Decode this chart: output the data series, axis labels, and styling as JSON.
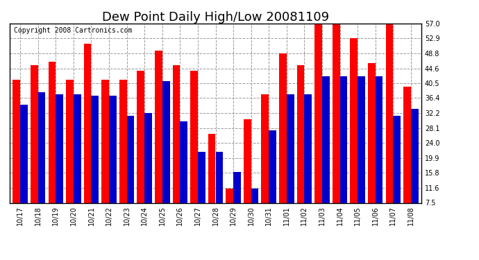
{
  "title": "Dew Point Daily High/Low 20081109",
  "copyright": "Copyright 2008 Cartronics.com",
  "categories": [
    "10/17",
    "10/18",
    "10/19",
    "10/20",
    "10/21",
    "10/22",
    "10/23",
    "10/24",
    "10/25",
    "10/26",
    "10/27",
    "10/28",
    "10/29",
    "10/30",
    "10/31",
    "11/01",
    "11/02",
    "11/03",
    "11/04",
    "11/05",
    "11/06",
    "11/07",
    "11/08"
  ],
  "highs": [
    41.5,
    45.5,
    46.5,
    41.5,
    51.5,
    41.5,
    41.5,
    44.0,
    49.5,
    45.5,
    44.0,
    26.5,
    11.5,
    30.5,
    37.5,
    48.8,
    45.5,
    57.0,
    57.0,
    52.9,
    46.0,
    57.0,
    39.5
  ],
  "lows": [
    34.5,
    38.0,
    37.5,
    37.5,
    37.0,
    37.0,
    31.5,
    32.2,
    41.0,
    30.0,
    21.5,
    21.5,
    16.0,
    11.5,
    27.5,
    37.5,
    37.5,
    42.5,
    42.5,
    42.5,
    42.5,
    31.5,
    33.5
  ],
  "high_color": "#ff0000",
  "low_color": "#0000cc",
  "bg_color": "#ffffff",
  "plot_bg_color": "#ffffff",
  "grid_color": "#999999",
  "yticks": [
    7.5,
    11.6,
    15.8,
    19.9,
    24.0,
    28.1,
    32.2,
    36.4,
    40.5,
    44.6,
    48.8,
    52.9,
    57.0
  ],
  "ymin": 7.5,
  "ymax": 57.0,
  "title_fontsize": 13,
  "copyright_fontsize": 7,
  "tick_fontsize": 7
}
